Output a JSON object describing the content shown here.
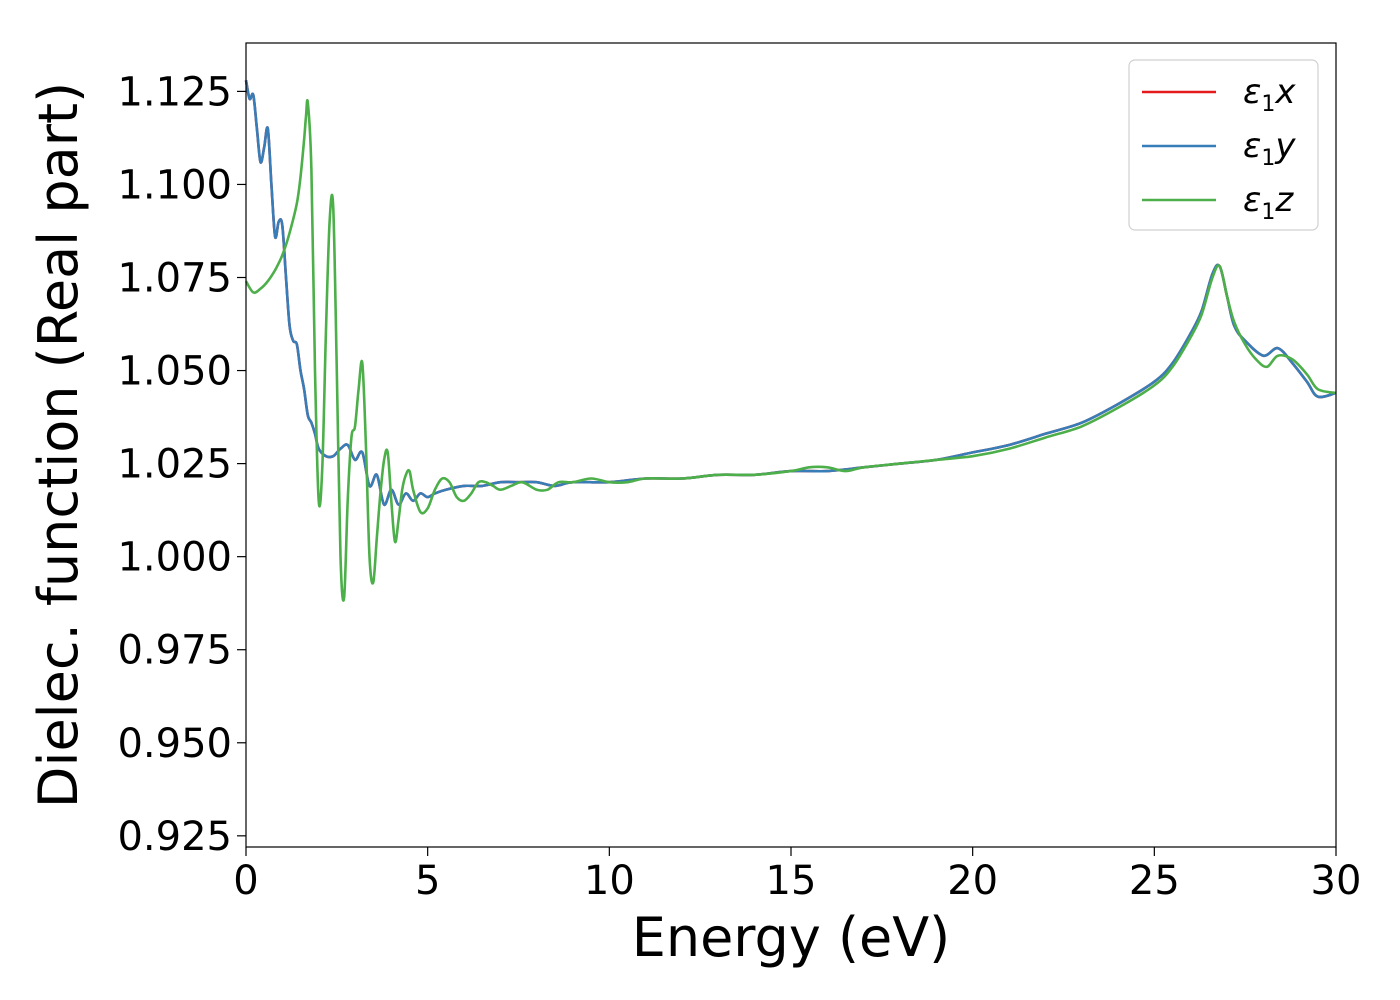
{
  "chart_data": {
    "type": "line",
    "xlabel": "Energy (eV)",
    "ylabel": "Dielec. function (Real part)",
    "xlim": [
      0,
      30
    ],
    "ylim": [
      0.922,
      1.138
    ],
    "xticks": [
      0,
      5,
      10,
      15,
      20,
      25,
      30
    ],
    "xtick_labels": [
      "0",
      "5",
      "10",
      "15",
      "20",
      "25",
      "30"
    ],
    "yticks": [
      0.925,
      0.95,
      0.975,
      1.0,
      1.025,
      1.05,
      1.075,
      1.1,
      1.125
    ],
    "ytick_labels": [
      "0.925",
      "0.950",
      "0.975",
      "1.000",
      "1.025",
      "1.050",
      "1.075",
      "1.100",
      "1.125"
    ],
    "grid": false,
    "legend_position": "top-right",
    "series": [
      {
        "name": "ε1x",
        "legend_symbol": "ε",
        "legend_sub": "1",
        "legend_var": "x",
        "color": "#e41a1c",
        "x": [
          0,
          0.1,
          0.2,
          0.3,
          0.4,
          0.5,
          0.6,
          0.7,
          0.8,
          0.9,
          1.0,
          1.1,
          1.2,
          1.3,
          1.4,
          1.5,
          1.6,
          1.7,
          1.8,
          1.9,
          2.0,
          2.2,
          2.4,
          2.6,
          2.8,
          3.0,
          3.2,
          3.4,
          3.6,
          3.8,
          4.0,
          4.2,
          4.4,
          4.6,
          4.8,
          5.0,
          5.2,
          5.5,
          6.0,
          6.5,
          7.0,
          7.5,
          8.0,
          8.5,
          9.0,
          10,
          11,
          12,
          13,
          14,
          15,
          16,
          17,
          18,
          19,
          20,
          21,
          22,
          23,
          24,
          25,
          25.5,
          26,
          26.3,
          26.6,
          26.8,
          27.0,
          27.2,
          27.5,
          28.0,
          28.4,
          28.8,
          29.2,
          29.5,
          30
        ],
        "y": [
          1.128,
          1.123,
          1.124,
          1.115,
          1.106,
          1.11,
          1.115,
          1.1,
          1.086,
          1.09,
          1.089,
          1.075,
          1.062,
          1.058,
          1.057,
          1.05,
          1.045,
          1.038,
          1.036,
          1.033,
          1.029,
          1.027,
          1.027,
          1.029,
          1.03,
          1.026,
          1.028,
          1.019,
          1.022,
          1.014,
          1.018,
          1.014,
          1.017,
          1.015,
          1.017,
          1.016,
          1.017,
          1.018,
          1.019,
          1.019,
          1.02,
          1.02,
          1.02,
          1.019,
          1.02,
          1.02,
          1.021,
          1.021,
          1.022,
          1.022,
          1.023,
          1.023,
          1.024,
          1.025,
          1.026,
          1.028,
          1.03,
          1.033,
          1.036,
          1.041,
          1.047,
          1.052,
          1.06,
          1.066,
          1.076,
          1.078,
          1.07,
          1.062,
          1.058,
          1.054,
          1.056,
          1.052,
          1.047,
          1.043,
          1.044
        ]
      },
      {
        "name": "ε1y",
        "legend_symbol": "ε",
        "legend_sub": "1",
        "legend_var": "y",
        "color": "#377eb8",
        "x": [
          0,
          0.1,
          0.2,
          0.3,
          0.4,
          0.5,
          0.6,
          0.7,
          0.8,
          0.9,
          1.0,
          1.1,
          1.2,
          1.3,
          1.4,
          1.5,
          1.6,
          1.7,
          1.8,
          1.9,
          2.0,
          2.2,
          2.4,
          2.6,
          2.8,
          3.0,
          3.2,
          3.4,
          3.6,
          3.8,
          4.0,
          4.2,
          4.4,
          4.6,
          4.8,
          5.0,
          5.2,
          5.5,
          6.0,
          6.5,
          7.0,
          7.5,
          8.0,
          8.5,
          9.0,
          10,
          11,
          12,
          13,
          14,
          15,
          16,
          17,
          18,
          19,
          20,
          21,
          22,
          23,
          24,
          25,
          25.5,
          26,
          26.3,
          26.6,
          26.8,
          27.0,
          27.2,
          27.5,
          28.0,
          28.4,
          28.8,
          29.2,
          29.5,
          30
        ],
        "y": [
          1.128,
          1.123,
          1.124,
          1.115,
          1.106,
          1.11,
          1.115,
          1.1,
          1.086,
          1.09,
          1.089,
          1.075,
          1.062,
          1.058,
          1.057,
          1.05,
          1.045,
          1.038,
          1.036,
          1.033,
          1.029,
          1.027,
          1.027,
          1.029,
          1.03,
          1.026,
          1.028,
          1.019,
          1.022,
          1.014,
          1.018,
          1.014,
          1.017,
          1.015,
          1.017,
          1.016,
          1.017,
          1.018,
          1.019,
          1.019,
          1.02,
          1.02,
          1.02,
          1.019,
          1.02,
          1.02,
          1.021,
          1.021,
          1.022,
          1.022,
          1.023,
          1.023,
          1.024,
          1.025,
          1.026,
          1.028,
          1.03,
          1.033,
          1.036,
          1.041,
          1.047,
          1.052,
          1.06,
          1.066,
          1.076,
          1.078,
          1.07,
          1.062,
          1.058,
          1.054,
          1.056,
          1.052,
          1.047,
          1.043,
          1.044
        ]
      },
      {
        "name": "ε1z",
        "legend_symbol": "ε",
        "legend_sub": "1",
        "legend_var": "z",
        "color": "#4daf4a",
        "x": [
          0,
          0.2,
          0.4,
          0.6,
          0.8,
          1.0,
          1.2,
          1.4,
          1.5,
          1.6,
          1.65,
          1.7,
          1.8,
          1.9,
          2.0,
          2.1,
          2.2,
          2.3,
          2.4,
          2.5,
          2.6,
          2.7,
          2.8,
          2.9,
          3.0,
          3.1,
          3.2,
          3.3,
          3.4,
          3.5,
          3.6,
          3.7,
          3.8,
          3.9,
          4.0,
          4.1,
          4.2,
          4.3,
          4.4,
          4.5,
          4.6,
          4.8,
          5.0,
          5.2,
          5.4,
          5.6,
          5.8,
          6.0,
          6.2,
          6.4,
          6.6,
          6.8,
          7.0,
          7.3,
          7.6,
          8.0,
          8.3,
          8.6,
          9.0,
          9.5,
          10,
          10.5,
          11,
          12,
          13,
          14,
          15,
          15.5,
          16,
          16.5,
          17,
          18,
          19,
          20,
          21,
          22,
          23,
          24,
          25,
          25.5,
          26,
          26.3,
          26.6,
          26.8,
          27.0,
          27.2,
          27.5,
          27.8,
          28.1,
          28.4,
          28.8,
          29.2,
          29.5,
          30
        ],
        "y": [
          1.074,
          1.071,
          1.072,
          1.074,
          1.077,
          1.081,
          1.087,
          1.095,
          1.102,
          1.112,
          1.118,
          1.122,
          1.104,
          1.05,
          1.015,
          1.024,
          1.06,
          1.09,
          1.094,
          1.05,
          1.0,
          0.989,
          1.015,
          1.032,
          1.035,
          1.045,
          1.052,
          1.03,
          1.0,
          0.993,
          1.005,
          1.017,
          1.026,
          1.028,
          1.015,
          1.004,
          1.01,
          1.018,
          1.022,
          1.023,
          1.018,
          1.012,
          1.013,
          1.018,
          1.021,
          1.02,
          1.016,
          1.015,
          1.017,
          1.02,
          1.02,
          1.019,
          1.018,
          1.019,
          1.02,
          1.018,
          1.018,
          1.02,
          1.02,
          1.021,
          1.02,
          1.02,
          1.021,
          1.021,
          1.022,
          1.022,
          1.023,
          1.024,
          1.024,
          1.023,
          1.024,
          1.025,
          1.026,
          1.027,
          1.029,
          1.032,
          1.035,
          1.04,
          1.046,
          1.051,
          1.059,
          1.065,
          1.075,
          1.078,
          1.07,
          1.063,
          1.057,
          1.053,
          1.051,
          1.054,
          1.053,
          1.049,
          1.045,
          1.044
        ]
      }
    ]
  }
}
